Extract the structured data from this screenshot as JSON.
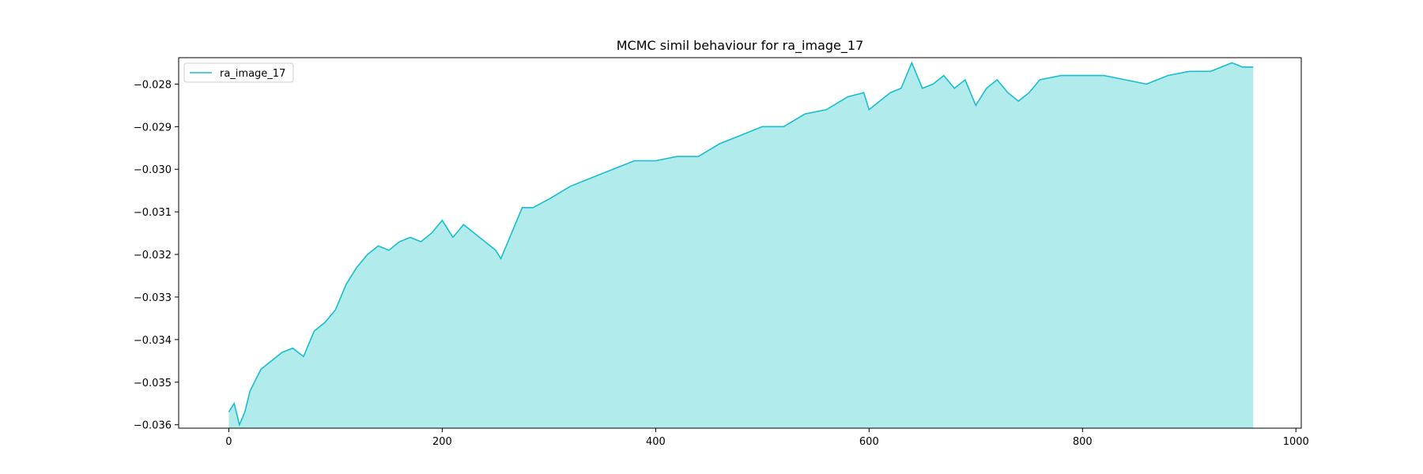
{
  "chart_data": {
    "type": "line",
    "title": "MCMC simil behaviour for ra_image_17",
    "xlabel": "",
    "ylabel": "",
    "xlim": [
      -47,
      1005
    ],
    "ylim": [
      -0.03608,
      -0.02738
    ],
    "xticks": [
      0,
      200,
      400,
      600,
      800,
      1000
    ],
    "yticks": [
      -0.028,
      -0.029,
      -0.03,
      -0.031,
      -0.032,
      -0.033,
      -0.034,
      -0.035,
      -0.036
    ],
    "ytick_labels": [
      "−0.028",
      "−0.029",
      "−0.030",
      "−0.031",
      "−0.032",
      "−0.033",
      "−0.034",
      "−0.035",
      "−0.036"
    ],
    "grid": false,
    "legend_position": "upper-left",
    "fill_between": true,
    "series": [
      {
        "name": "ra_image_17",
        "color": "#17becf",
        "fill_color": "#b2ebeb",
        "x": [
          0,
          5,
          10,
          15,
          20,
          30,
          40,
          50,
          60,
          70,
          80,
          90,
          100,
          110,
          120,
          130,
          140,
          150,
          160,
          170,
          180,
          190,
          200,
          210,
          220,
          230,
          240,
          250,
          255,
          265,
          275,
          285,
          300,
          320,
          340,
          360,
          380,
          400,
          420,
          440,
          460,
          480,
          500,
          520,
          540,
          560,
          580,
          595,
          600,
          620,
          630,
          640,
          650,
          660,
          670,
          680,
          690,
          700,
          710,
          720,
          730,
          740,
          750,
          760,
          780,
          800,
          820,
          840,
          860,
          880,
          900,
          920,
          940,
          950,
          960
        ],
        "values": [
          -0.0357,
          -0.0355,
          -0.036,
          -0.0357,
          -0.0352,
          -0.0347,
          -0.0345,
          -0.0343,
          -0.0342,
          -0.0344,
          -0.0338,
          -0.0336,
          -0.0333,
          -0.0327,
          -0.0323,
          -0.032,
          -0.0318,
          -0.0319,
          -0.0317,
          -0.0316,
          -0.0317,
          -0.0315,
          -0.0312,
          -0.0316,
          -0.0313,
          -0.0315,
          -0.0317,
          -0.0319,
          -0.0321,
          -0.0315,
          -0.0309,
          -0.0309,
          -0.0307,
          -0.0304,
          -0.0302,
          -0.03,
          -0.0298,
          -0.0298,
          -0.0297,
          -0.0297,
          -0.0294,
          -0.0292,
          -0.029,
          -0.029,
          -0.0287,
          -0.0286,
          -0.0283,
          -0.0282,
          -0.0286,
          -0.0282,
          -0.0281,
          -0.0275,
          -0.0281,
          -0.028,
          -0.0278,
          -0.0281,
          -0.0279,
          -0.0285,
          -0.0281,
          -0.0279,
          -0.0282,
          -0.0284,
          -0.0282,
          -0.0279,
          -0.0278,
          -0.0278,
          -0.0278,
          -0.0279,
          -0.028,
          -0.0278,
          -0.0277,
          -0.0277,
          -0.0275,
          -0.0276,
          -0.0276
        ]
      }
    ]
  }
}
